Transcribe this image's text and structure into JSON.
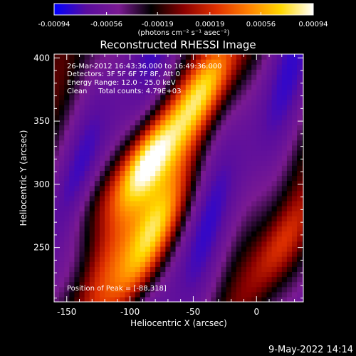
{
  "colorbar": {
    "tick_labels": [
      "-0.00094",
      "-0.00056",
      "-0.00019",
      "0.00019",
      "0.00056",
      "0.00094"
    ],
    "units_label": "(photons cm⁻² s⁻¹ asec⁻²)",
    "range": [
      -0.00094,
      0.00094
    ],
    "colors": [
      "#0000ff",
      "#5a0d9e",
      "#7a1a92",
      "#000000",
      "#8a0000",
      "#e03000",
      "#ff8000",
      "#ffd800",
      "#ffffff"
    ]
  },
  "plot": {
    "title": "Reconstructed RHESSI Image",
    "xlabel": "Heliocentric X (arcsec)",
    "ylabel": "Heliocentric Y (arcsec)",
    "x_ticks": [
      "-150",
      "-100",
      "-50",
      "0"
    ],
    "y_ticks": [
      "250",
      "300",
      "350",
      "400"
    ],
    "info_lines": [
      "26-Mar-2012 16:43:36.000 to 16:49:36.000",
      "Detectors: 3F 5F 6F 7F 8F, Att 0",
      "Energy Range: 12.0 - 25.0 keV",
      "Clean     Total counts: 4.79E+03"
    ],
    "peak_label": "Position of Peak = [-88,318]"
  },
  "footer": {
    "timestamp": "9-May-2022 14:14"
  },
  "chart_data": {
    "type": "heatmap",
    "title": "Reconstructed RHESSI Image",
    "xlabel": "Heliocentric X (arcsec)",
    "ylabel": "Heliocentric Y (arcsec)",
    "xlim": [
      -160,
      37
    ],
    "ylim": [
      207,
      403
    ],
    "value_range": [
      -0.00094,
      0.00094
    ],
    "peak": {
      "x": -88,
      "y": 318,
      "value": 0.00094
    },
    "sources": [
      {
        "x": -88,
        "y": 318,
        "value": 0.00094
      },
      {
        "x": -78,
        "y": 268,
        "value": 0.00062
      },
      {
        "x": -95,
        "y": 228,
        "value": 0.0005
      },
      {
        "x": -40,
        "y": 378,
        "value": 0.00055
      },
      {
        "x": 18,
        "y": 250,
        "value": 0.0004
      },
      {
        "x": -128,
        "y": 285,
        "value": 0.00025
      }
    ],
    "grid": false
  }
}
